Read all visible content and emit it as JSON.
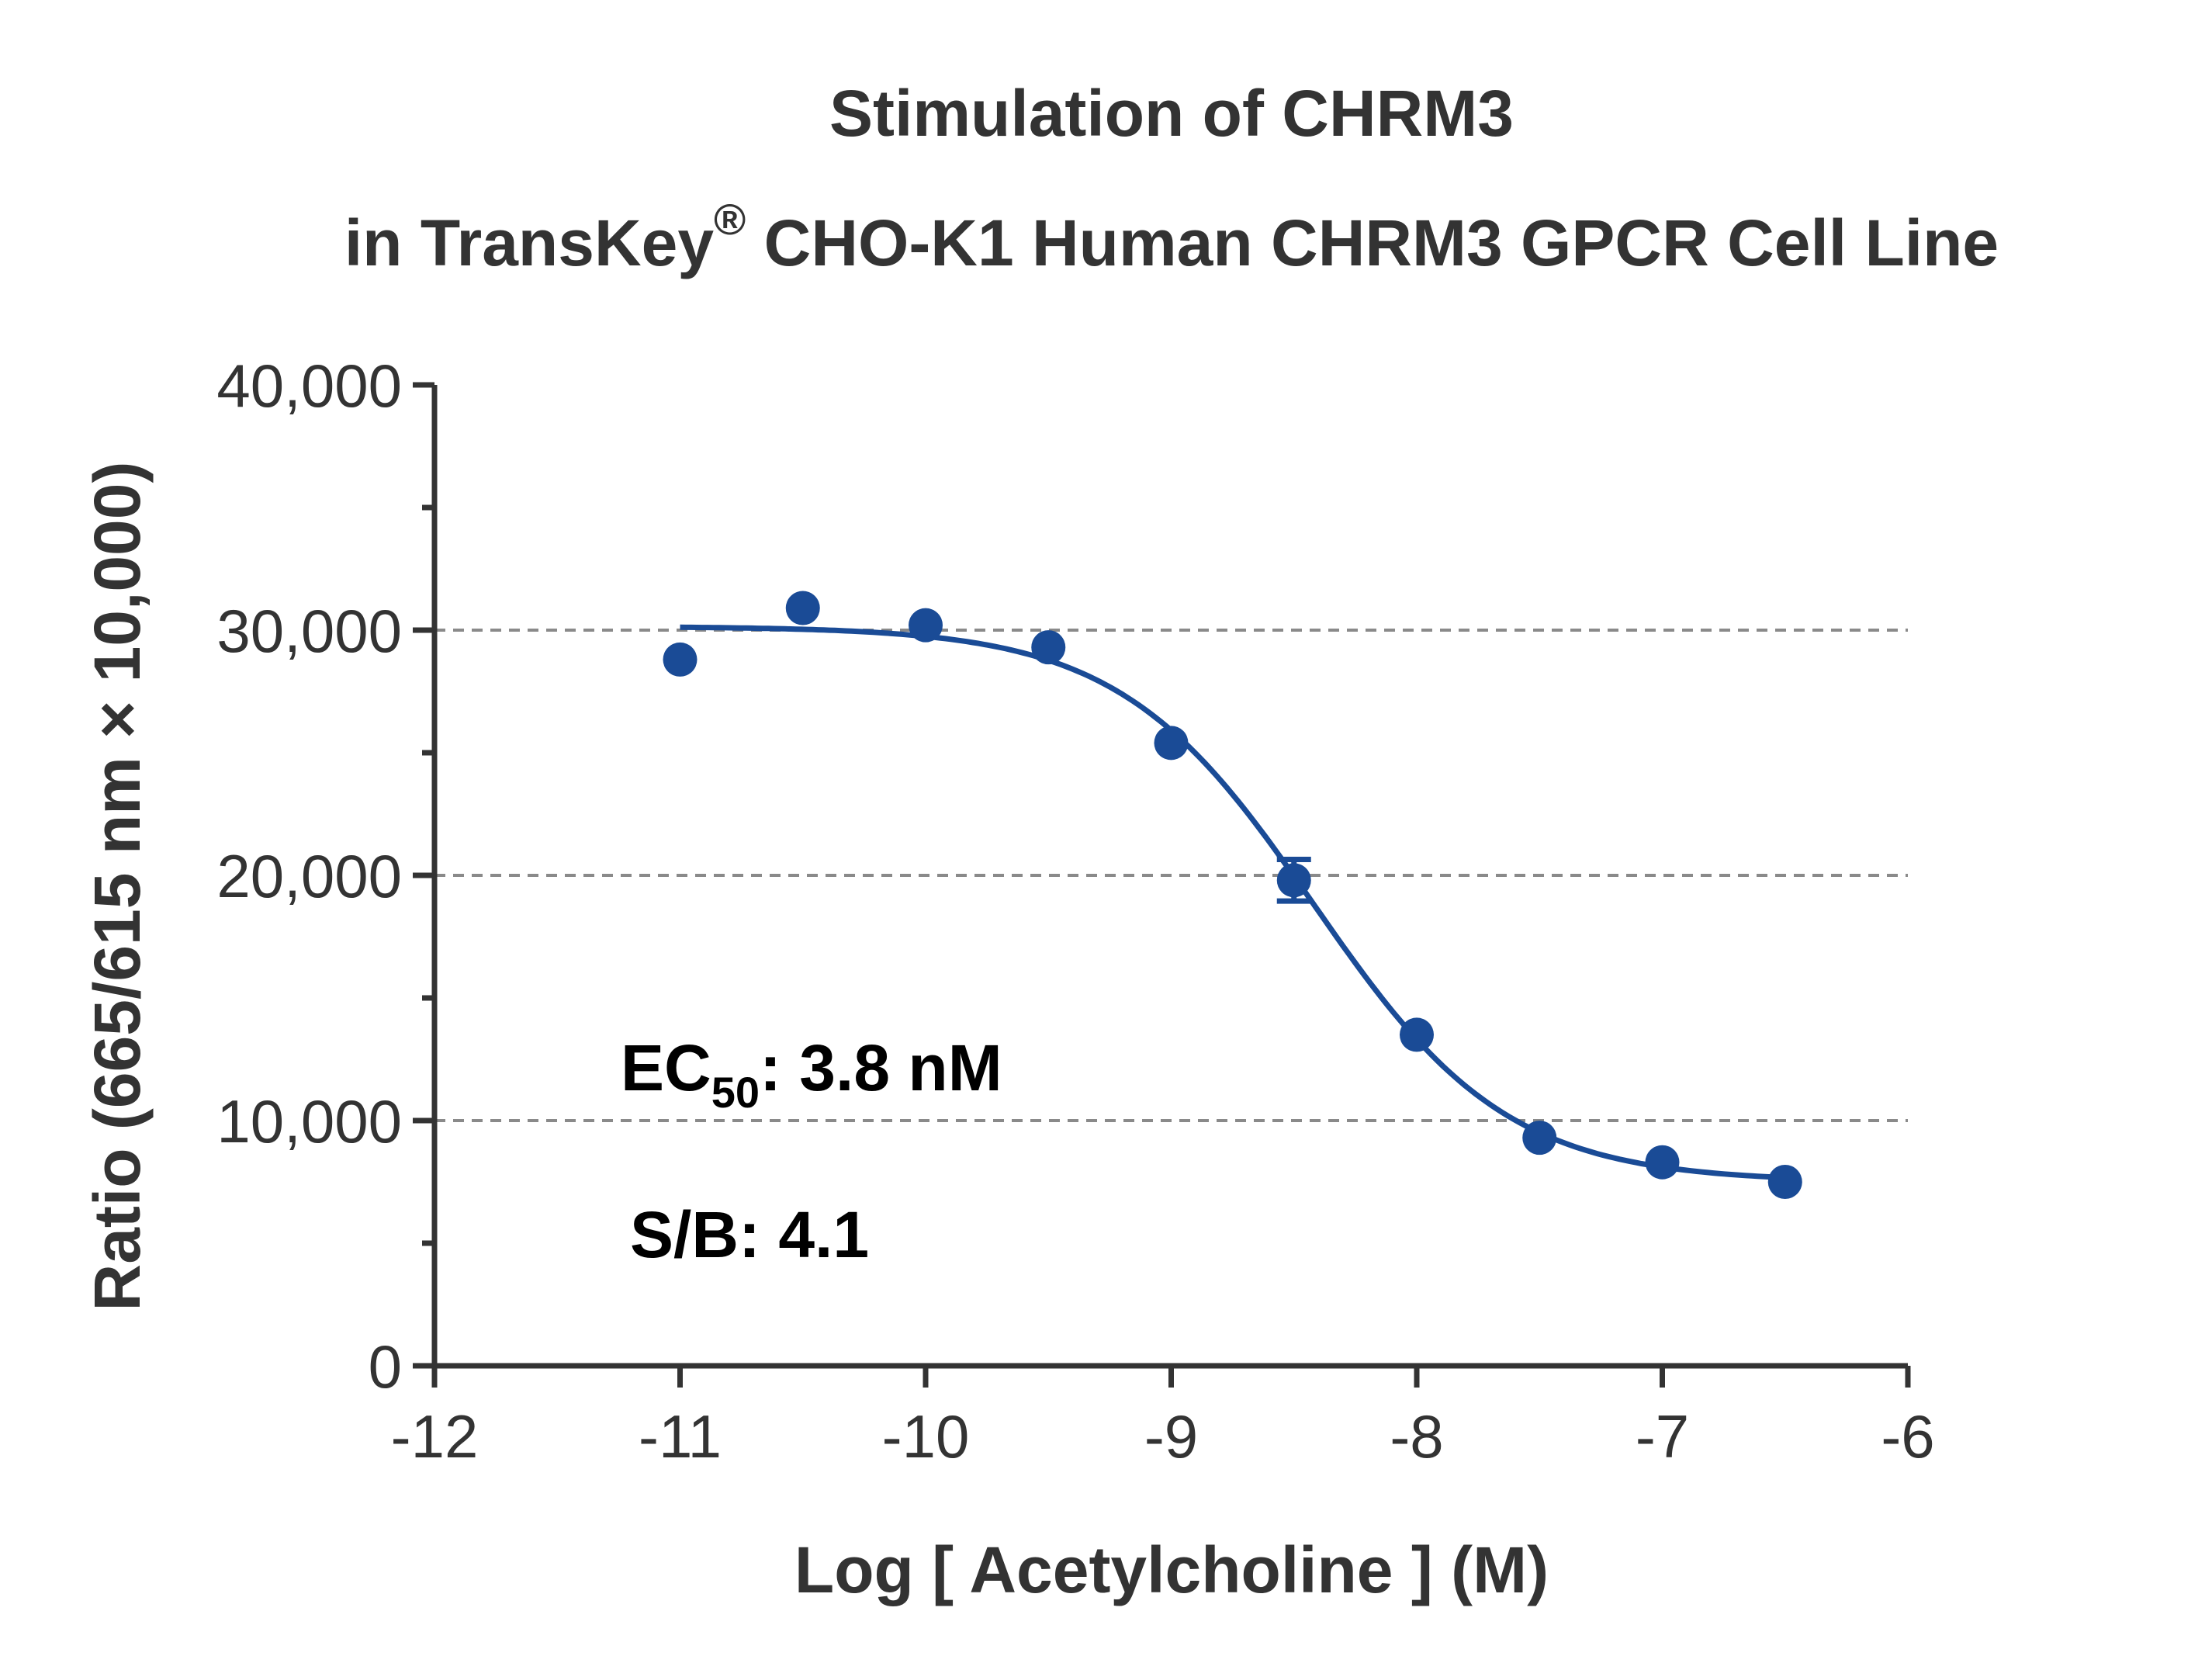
{
  "chart_data": {
    "type": "scatter",
    "title_line1": "Stimulation of  CHRM3",
    "title_line2_prefix": "in TransKey",
    "title_line2_sup": "®",
    "title_line2_suffix": " CHO-K1 Human CHRM3 GPCR Cell Line",
    "xlabel": "Log [ Acetylcholine ]  (M)",
    "ylabel": "Ratio (665/615 nm × 10,000)",
    "xlim": [
      -12,
      -6
    ],
    "ylim": [
      0,
      40000
    ],
    "x_ticks": [
      -12,
      -11,
      -10,
      -9,
      -8,
      -7,
      -6
    ],
    "x_tick_labels": [
      "-12",
      "-11",
      "-10",
      "-9",
      "-8",
      "-7",
      "-6"
    ],
    "y_ticks": [
      0,
      10000,
      20000,
      30000,
      40000
    ],
    "y_tick_labels": [
      "0",
      "10,000",
      "20,000",
      "30,000",
      "40,000"
    ],
    "y_minor_ticks": [
      5000,
      15000,
      25000,
      35000
    ],
    "gridlines_y": [
      10000,
      20000,
      30000
    ],
    "grid_style": "dashed",
    "series": [
      {
        "color": "#1a4b96",
        "x": [
          -11,
          -10.5,
          -10,
          -9.5,
          -9,
          -8.5,
          -8,
          -7.5,
          -7,
          -6.5
        ],
        "y": [
          28800,
          30900,
          30200,
          29300,
          25400,
          19800,
          13500,
          9300,
          8300,
          7500
        ],
        "error": [
          0,
          0,
          0,
          0,
          0,
          850,
          0,
          0,
          0,
          0
        ]
      }
    ],
    "fit": {
      "model": "four-parameter logistic",
      "top": 30150,
      "bottom": 7500,
      "log_ec50": -8.42,
      "hill_slope": 1.1,
      "x_range": [
        -11,
        -6.5
      ]
    },
    "annotations": {
      "ec50_prefix": "EC",
      "ec50_sub": "50",
      "ec50_suffix": ": 3.8 nM",
      "sb": "S/B: 4.1"
    }
  }
}
